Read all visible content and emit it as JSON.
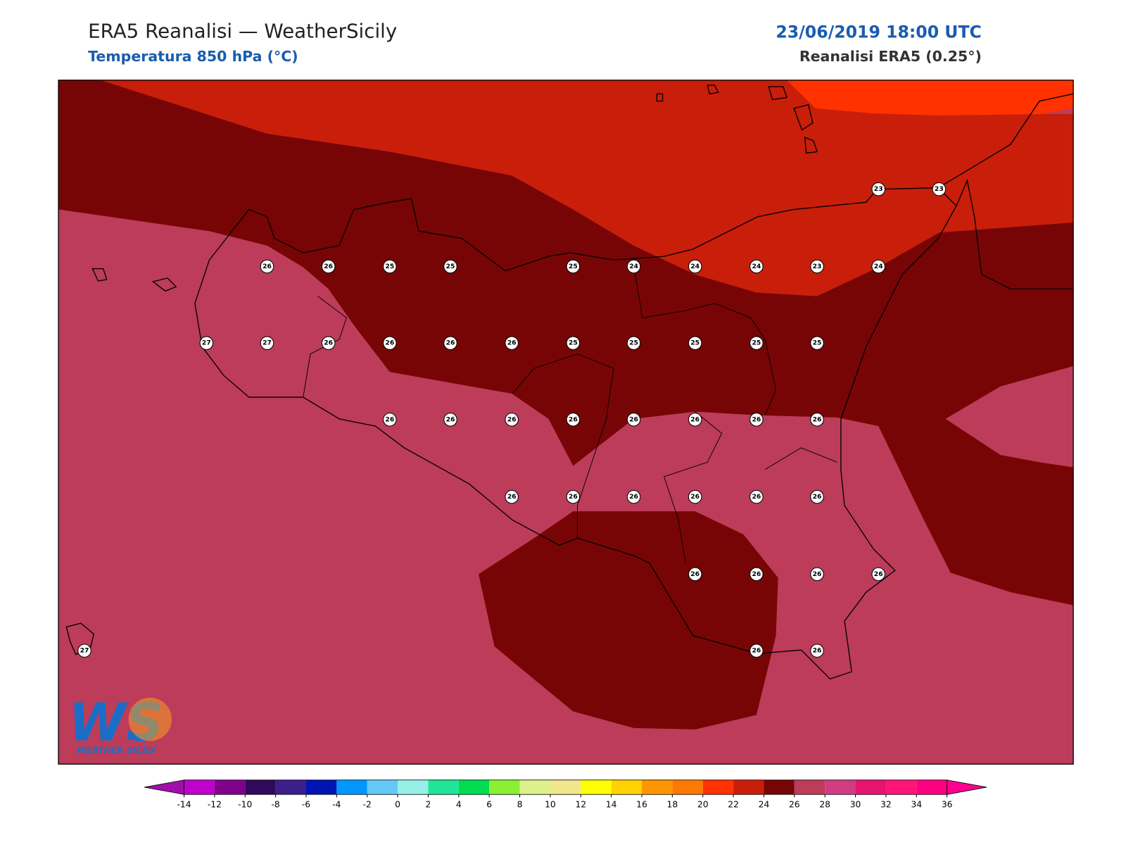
{
  "header": {
    "title": "ERA5 Reanalisi — WeatherSicily",
    "subtitle": "Temperatura 850 hPa (°C)",
    "datetime": "23/06/2019 18:00 UTC",
    "source": "Reanalisi ERA5 (0.25°)"
  },
  "stations": [
    26,
    26,
    25,
    25,
    25,
    24,
    24,
    24,
    23,
    24,
    23,
    23,
    27,
    27,
    26,
    26,
    26,
    26,
    25,
    25,
    25,
    25,
    25,
    26,
    26,
    26,
    26,
    26,
    26,
    26,
    26,
    26,
    26,
    26,
    26,
    26,
    26,
    26,
    26,
    26,
    26,
    27,
    26,
    26
  ],
  "colorbar": {
    "ticks": [
      -14,
      -12,
      -10,
      -8,
      -6,
      -4,
      -2,
      0,
      2,
      4,
      6,
      8,
      10,
      12,
      14,
      16,
      18,
      20,
      22,
      24,
      26,
      28,
      30,
      32,
      34,
      36
    ],
    "colors": [
      "#a010a8",
      "#c000cc",
      "#80008c",
      "#300a5a",
      "#3c1e8c",
      "#0014b4",
      "#0096ff",
      "#64c8f8",
      "#96f0e6",
      "#1ee696",
      "#00dc50",
      "#8cf032",
      "#dcf08c",
      "#f0e68c",
      "#ffff00",
      "#ffd200",
      "#ff9600",
      "#ff7800",
      "#ff3200",
      "#c81e0a",
      "#780505",
      "#bc3c5a",
      "#d23c82",
      "#e6146e",
      "#ff1478",
      "#ff0080",
      "#ff0090"
    ]
  },
  "logo": {
    "mark": "WS",
    "text": "WEATHER SICILY"
  }
}
